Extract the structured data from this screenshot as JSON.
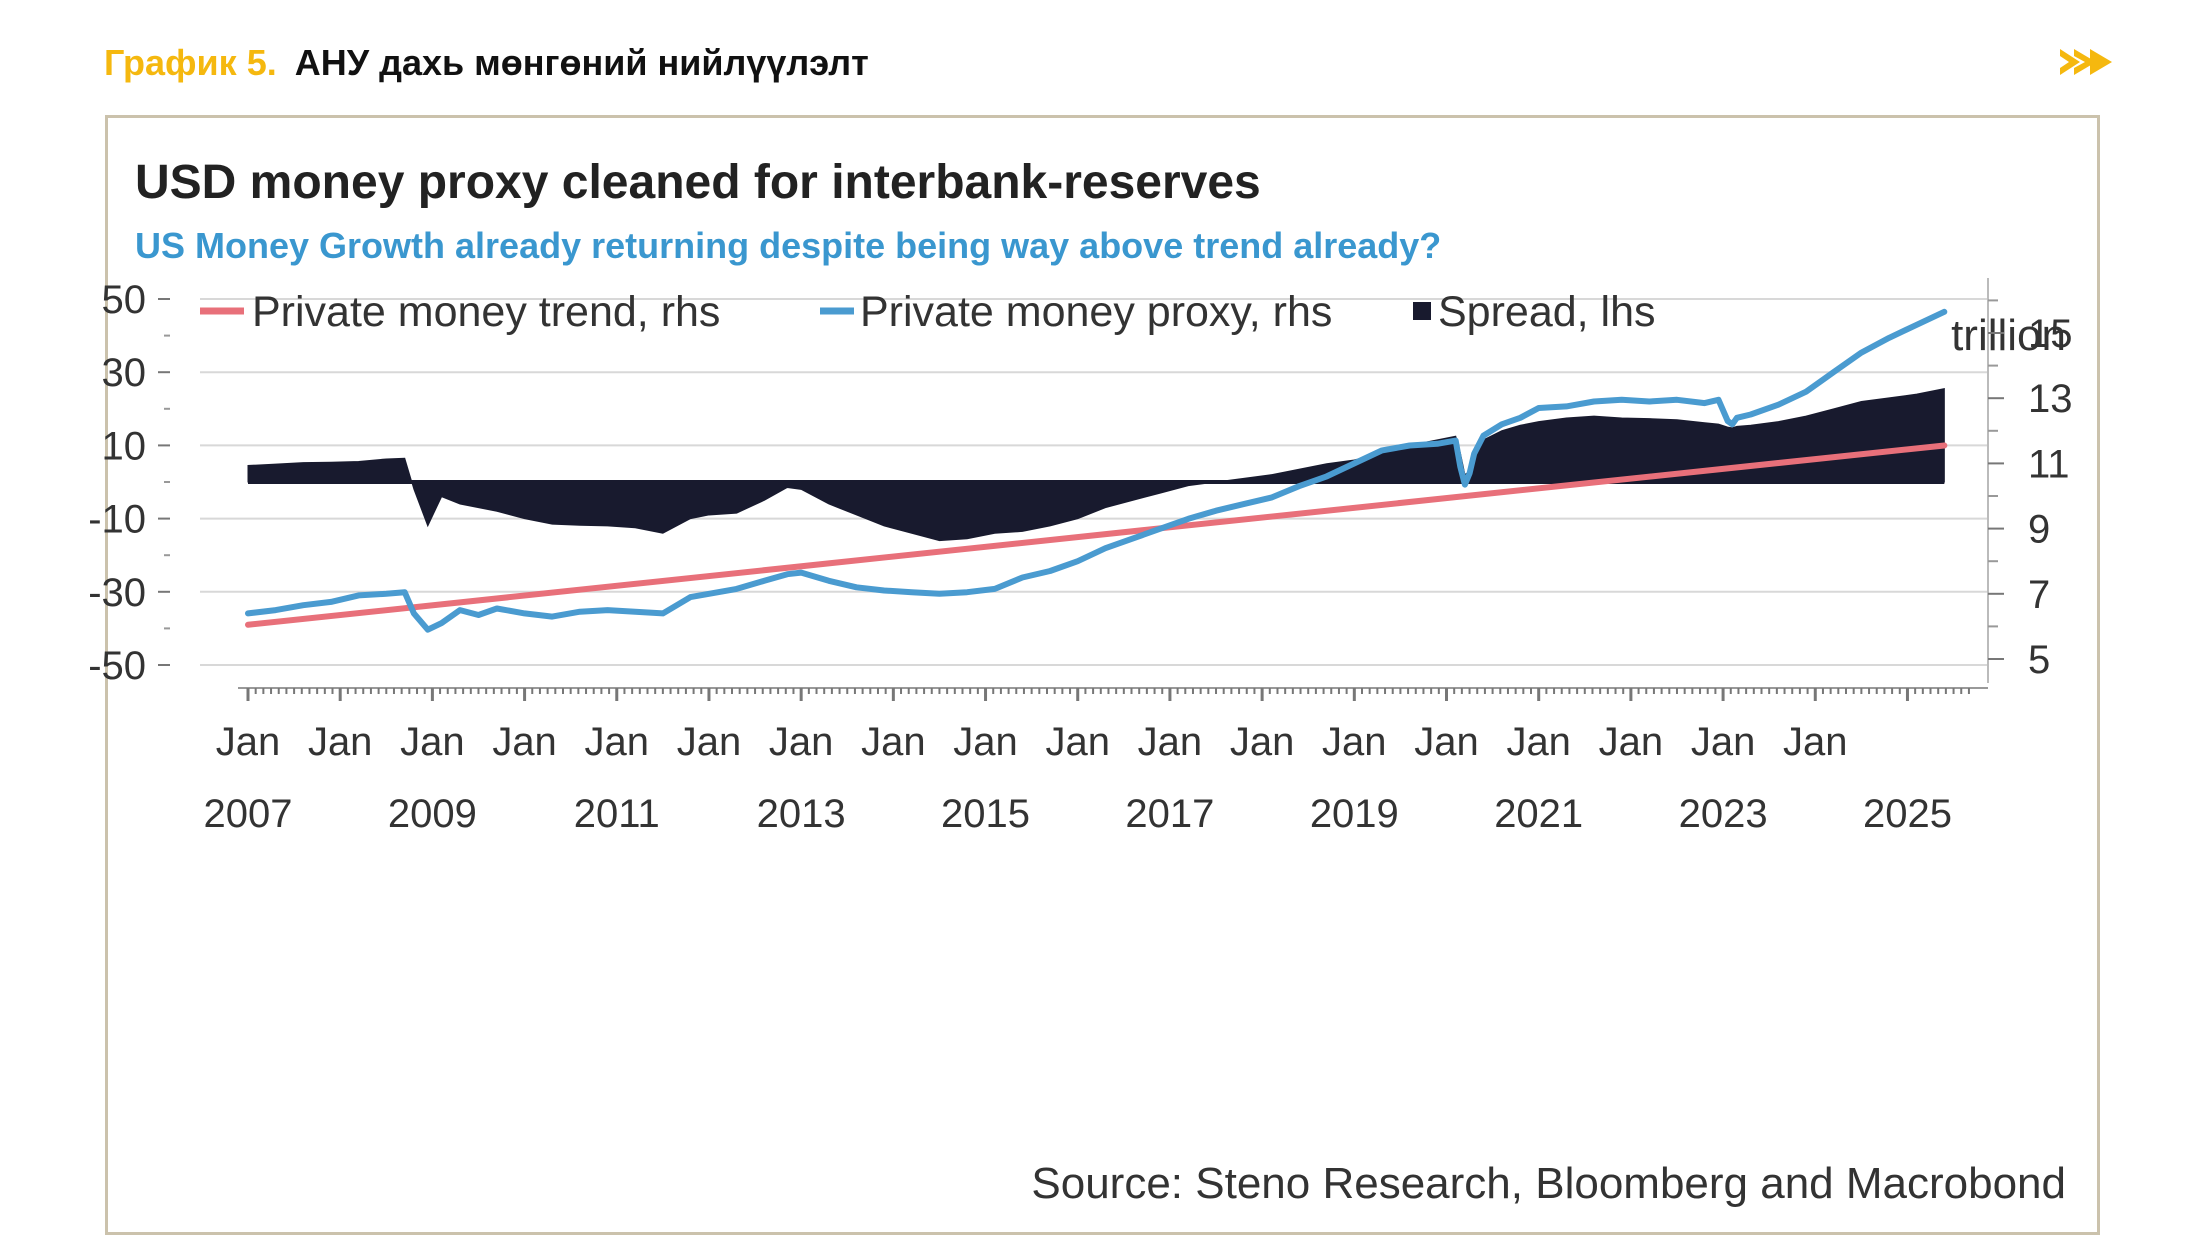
{
  "header": {
    "figure_label": "График 5.",
    "figure_title": "АНУ дахь мөнгөний нийлүүлэлт"
  },
  "icons": {
    "forward": "double-chevron-right-icon"
  },
  "colors": {
    "accent": "#f5b80f",
    "frame": "#cbc2ac",
    "trend": "#e8707a",
    "proxy": "#4a9bd0",
    "spread": "#181a2e",
    "subtitle": "#3a97cf"
  },
  "chart_data": {
    "type": "line",
    "title": "USD money proxy cleaned for interbank-reserves",
    "subtitle": "US Money Growth already returning despite being way above trend already?",
    "right_axis_unit": "trillion",
    "source": "Source: Steno Research, Bloomberg and Macrobond",
    "legend": [
      {
        "label": "Private money trend, rhs",
        "kind": "line"
      },
      {
        "label": "Private money proxy, rhs",
        "kind": "line"
      },
      {
        "label": "Spread, lhs",
        "kind": "square"
      }
    ],
    "x_range": [
      2007.0,
      2025.7
    ],
    "left_axis": {
      "min": -56,
      "max": 52,
      "ticks": [
        50,
        30,
        10,
        -10,
        -30,
        -50
      ]
    },
    "right_axis": {
      "min": 4.6,
      "max": 16.1,
      "ticks": [
        15,
        13,
        11,
        9,
        7,
        5
      ]
    },
    "x_ticks": [
      {
        "year": 2007,
        "top": "Jan",
        "bottom": "2007"
      },
      {
        "year": 2008,
        "top": "Jan",
        "bottom": ""
      },
      {
        "year": 2009,
        "top": "Jan",
        "bottom": "2009"
      },
      {
        "year": 2010,
        "top": "Jan",
        "bottom": ""
      },
      {
        "year": 2011,
        "top": "Jan",
        "bottom": "2011"
      },
      {
        "year": 2012,
        "top": "Jan",
        "bottom": ""
      },
      {
        "year": 2013,
        "top": "Jan",
        "bottom": "2013"
      },
      {
        "year": 2014,
        "top": "Jan",
        "bottom": ""
      },
      {
        "year": 2015,
        "top": "Jan",
        "bottom": "2015"
      },
      {
        "year": 2016,
        "top": "Jan",
        "bottom": ""
      },
      {
        "year": 2017,
        "top": "Jan",
        "bottom": "2017"
      },
      {
        "year": 2018,
        "top": "Jan",
        "bottom": ""
      },
      {
        "year": 2019,
        "top": "Jan",
        "bottom": "2019"
      },
      {
        "year": 2020,
        "top": "Jan",
        "bottom": ""
      },
      {
        "year": 2021,
        "top": "Jan",
        "bottom": "2021"
      },
      {
        "year": 2022,
        "top": "Jan",
        "bottom": ""
      },
      {
        "year": 2023,
        "top": "Jan",
        "bottom": "2023"
      },
      {
        "year": 2024,
        "top": "Jan",
        "bottom": ""
      },
      {
        "year": 2025,
        "top": "",
        "bottom": "2025"
      }
    ],
    "series": [
      {
        "name": "Private money trend, rhs",
        "axis": "right",
        "type": "line",
        "x": [
          2007.0,
          2025.4
        ],
        "values": [
          6.05,
          11.55
        ]
      },
      {
        "name": "Private money proxy, rhs",
        "axis": "right",
        "type": "line",
        "x": [
          2007.0,
          2007.3,
          2007.6,
          2007.9,
          2008.2,
          2008.5,
          2008.7,
          2008.8,
          2008.95,
          2009.1,
          2009.3,
          2009.5,
          2009.7,
          2010.0,
          2010.3,
          2010.6,
          2010.9,
          2011.2,
          2011.5,
          2011.8,
          2012.0,
          2012.3,
          2012.6,
          2012.85,
          2013.0,
          2013.3,
          2013.6,
          2013.9,
          2014.2,
          2014.5,
          2014.8,
          2015.1,
          2015.4,
          2015.7,
          2016.0,
          2016.3,
          2016.6,
          2016.9,
          2017.2,
          2017.5,
          2017.8,
          2018.1,
          2018.4,
          2018.7,
          2019.0,
          2019.3,
          2019.6,
          2019.9,
          2020.1,
          2020.15,
          2020.2,
          2020.25,
          2020.3,
          2020.4,
          2020.6,
          2020.8,
          2021.0,
          2021.3,
          2021.6,
          2021.9,
          2022.2,
          2022.5,
          2022.8,
          2022.95,
          2023.05,
          2023.1,
          2023.15,
          2023.3,
          2023.6,
          2023.9,
          2024.2,
          2024.5,
          2024.8,
          2025.1,
          2025.4
        ],
        "values": [
          6.4,
          6.5,
          6.65,
          6.75,
          6.95,
          7.0,
          7.05,
          6.4,
          5.9,
          6.1,
          6.5,
          6.35,
          6.55,
          6.4,
          6.3,
          6.45,
          6.5,
          6.45,
          6.4,
          6.9,
          7.0,
          7.15,
          7.4,
          7.6,
          7.65,
          7.4,
          7.2,
          7.1,
          7.05,
          7.0,
          7.05,
          7.15,
          7.5,
          7.7,
          8.0,
          8.4,
          8.7,
          9.0,
          9.3,
          9.55,
          9.75,
          9.95,
          10.3,
          10.6,
          11.0,
          11.4,
          11.55,
          11.6,
          11.7,
          10.9,
          10.35,
          10.7,
          11.3,
          11.85,
          12.2,
          12.4,
          12.7,
          12.75,
          12.9,
          12.95,
          12.9,
          12.95,
          12.85,
          12.95,
          12.3,
          12.2,
          12.4,
          12.5,
          12.8,
          13.2,
          13.8,
          14.4,
          14.85,
          15.25,
          15.65
        ]
      },
      {
        "name": "Spread, lhs",
        "axis": "left",
        "type": "area",
        "x": [
          2007.0,
          2007.3,
          2007.6,
          2007.9,
          2008.2,
          2008.5,
          2008.7,
          2008.8,
          2008.95,
          2009.1,
          2009.3,
          2009.5,
          2009.7,
          2010.0,
          2010.3,
          2010.6,
          2010.9,
          2011.2,
          2011.5,
          2011.8,
          2012.0,
          2012.3,
          2012.6,
          2012.85,
          2013.0,
          2013.3,
          2013.6,
          2013.9,
          2014.2,
          2014.5,
          2014.8,
          2015.1,
          2015.4,
          2015.7,
          2016.0,
          2016.3,
          2016.6,
          2016.9,
          2017.2,
          2017.5,
          2017.8,
          2018.1,
          2018.4,
          2018.7,
          2019.0,
          2019.3,
          2019.6,
          2019.9,
          2020.1,
          2020.15,
          2020.2,
          2020.25,
          2020.3,
          2020.4,
          2020.6,
          2020.8,
          2021.0,
          2021.3,
          2021.6,
          2021.9,
          2022.2,
          2022.5,
          2022.8,
          2022.95,
          2023.05,
          2023.1,
          2023.15,
          2023.3,
          2023.6,
          2023.9,
          2024.2,
          2024.5,
          2024.8,
          2025.1,
          2025.4
        ],
        "values": [
          4.5,
          4.9,
          5.3,
          5.4,
          5.6,
          6.3,
          6.5,
          -2,
          -12,
          -4,
          -6,
          -7,
          -8,
          -10,
          -11.5,
          -11.8,
          -12,
          -12.5,
          -14,
          -10,
          -9,
          -8.5,
          -5,
          -1.5,
          -2,
          -6,
          -9,
          -12,
          -14,
          -16,
          -15.5,
          -14,
          -13.5,
          -12,
          -10,
          -7,
          -5,
          -3,
          -1,
          0,
          1,
          2,
          3.5,
          5,
          6,
          8,
          10,
          11.5,
          12.5,
          8,
          2,
          3,
          8,
          11.5,
          14,
          15.5,
          16.5,
          17.5,
          18,
          17.5,
          17.3,
          17,
          16.2,
          15.8,
          15,
          14.8,
          15.2,
          15.5,
          16.5,
          18,
          20,
          22,
          23,
          24,
          25.5
        ]
      }
    ]
  }
}
